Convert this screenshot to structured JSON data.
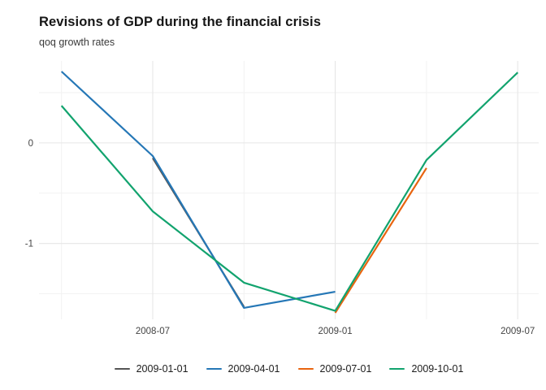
{
  "chart_data": {
    "type": "line",
    "title": "Revisions of GDP during the financial crisis",
    "subtitle": "qoq growth rates",
    "x_axis": {
      "unit": "months since 2008-01",
      "range": [
        2.26,
        18.69
      ],
      "major_ticks": [
        {
          "t": 6,
          "label": "2008-07"
        },
        {
          "t": 12,
          "label": "2009-01"
        },
        {
          "t": 18,
          "label": "2009-07"
        }
      ],
      "minor_ticks": [
        3,
        9,
        15
      ]
    },
    "y_axis": {
      "range": [
        -1.754,
        0.815
      ],
      "major_ticks": [
        {
          "v": 0,
          "label": "0"
        },
        {
          "v": -1,
          "label": "-1"
        }
      ],
      "minor_ticks": [
        0.5,
        -0.5,
        -1.5
      ]
    },
    "grid": {
      "major_color": "#e6e6e6",
      "minor_color": "#f2f2f2",
      "background": "#ffffff"
    },
    "series": [
      {
        "name": "2009-01-01",
        "color": "#545454",
        "points": [
          {
            "t": 6,
            "v": -0.15
          },
          {
            "t": 9,
            "v": -1.63
          }
        ]
      },
      {
        "name": "2009-04-01",
        "color": "#2577b6",
        "points": [
          {
            "t": 3,
            "v": 0.71
          },
          {
            "t": 6,
            "v": -0.13
          },
          {
            "t": 9,
            "v": -1.64
          },
          {
            "t": 12,
            "v": -1.48
          }
        ]
      },
      {
        "name": "2009-07-01",
        "color": "#e8640f",
        "points": [
          {
            "t": 12,
            "v": -1.69
          },
          {
            "t": 15,
            "v": -0.25
          }
        ]
      },
      {
        "name": "2009-10-01",
        "color": "#12a36e",
        "points": [
          {
            "t": 3,
            "v": 0.37
          },
          {
            "t": 6,
            "v": -0.68
          },
          {
            "t": 9,
            "v": -1.39
          },
          {
            "t": 12,
            "v": -1.67
          },
          {
            "t": 15,
            "v": -0.17
          },
          {
            "t": 18,
            "v": 0.7
          }
        ]
      }
    ],
    "legend": {
      "position": "bottom",
      "entries": [
        "2009-01-01",
        "2009-04-01",
        "2009-07-01",
        "2009-10-01"
      ]
    },
    "tick_label_color": "#444444",
    "line_width": 2.2
  }
}
